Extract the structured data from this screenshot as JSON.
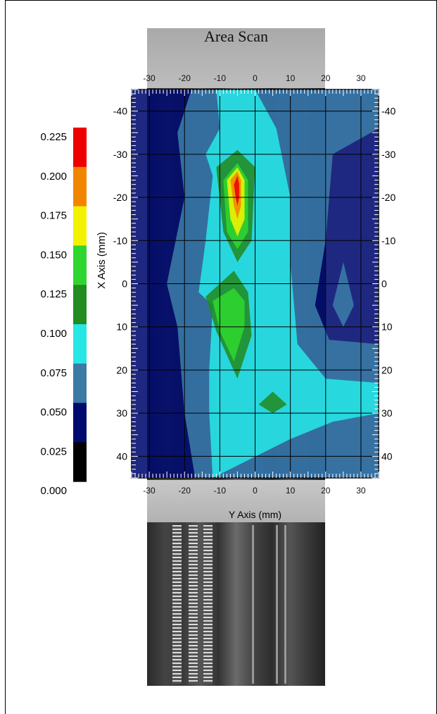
{
  "chart_data": {
    "type": "heatmap",
    "title": "Area Scan",
    "xlabel": "Y Axis (mm)",
    "ylabel": "X Axis (mm)",
    "x_ticks": [
      -30,
      -20,
      -10,
      0,
      10,
      20,
      30
    ],
    "y_ticks": [
      -40,
      -30,
      -20,
      -10,
      0,
      10,
      20,
      30,
      40
    ],
    "xlim": [
      -35,
      35
    ],
    "ylim": [
      -45,
      45
    ],
    "grid": true,
    "colorbar": {
      "labels": [
        "0.225",
        "0.200",
        "0.175",
        "0.150",
        "0.125",
        "0.100",
        "0.075",
        "0.050",
        "0.025",
        "0.000"
      ],
      "levels": [
        0.0,
        0.025,
        0.05,
        0.075,
        0.1,
        0.125,
        0.15,
        0.175,
        0.2,
        0.225
      ],
      "colors": [
        "#000000",
        "#000a6e",
        "#3a7ba6",
        "#26e6e6",
        "#228b22",
        "#2fd62f",
        "#f2f200",
        "#f28500",
        "#ee0000"
      ]
    },
    "contours": [
      {
        "level": 0.05,
        "color": "#3a7ba6",
        "regions": [
          [
            [
              -18,
              -45
            ],
            [
              35,
              -45
            ],
            [
              35,
              -36
            ],
            [
              22,
              -30
            ],
            [
              20,
              -10
            ],
            [
              17,
              5
            ],
            [
              21,
              13
            ],
            [
              35,
              14
            ],
            [
              35,
              45
            ],
            [
              -17,
              45
            ],
            [
              -20,
              30
            ],
            [
              -22,
              10
            ],
            [
              -25,
              0
            ],
            [
              -20,
              -20
            ],
            [
              -22,
              -35
            ]
          ],
          [
            [
              25,
              -5
            ],
            [
              28,
              5
            ],
            [
              25,
              10
            ],
            [
              22,
              5
            ]
          ]
        ]
      },
      {
        "level": 0.075,
        "color": "#26e6e6",
        "regions": [
          [
            [
              -11,
              -45
            ],
            [
              0,
              -45
            ],
            [
              6,
              -36
            ],
            [
              10,
              -20
            ],
            [
              10,
              -5
            ],
            [
              12,
              14
            ],
            [
              20,
              22
            ],
            [
              35,
              23
            ],
            [
              35,
              30
            ],
            [
              22,
              32
            ],
            [
              10,
              36
            ],
            [
              -12,
              45
            ],
            [
              -13,
              30
            ],
            [
              -13,
              20
            ],
            [
              -12,
              5
            ],
            [
              -16,
              2
            ],
            [
              -14,
              -10
            ],
            [
              -12,
              -25
            ],
            [
              -14,
              -30
            ],
            [
              -10,
              -36
            ]
          ]
        ]
      },
      {
        "level": 0.1,
        "color": "#228b22",
        "regions": [
          [
            [
              -5,
              -31
            ],
            [
              0,
              -27
            ],
            [
              -1,
              -10
            ],
            [
              -5,
              -5
            ],
            [
              -9,
              -12
            ],
            [
              -11,
              -27
            ]
          ],
          [
            [
              -6,
              -3
            ],
            [
              -2,
              2
            ],
            [
              -1,
              12
            ],
            [
              -5,
              22
            ],
            [
              -11,
              11
            ],
            [
              -14,
              3
            ]
          ],
          [
            [
              5,
              25
            ],
            [
              9,
              28
            ],
            [
              5,
              30
            ],
            [
              1,
              28
            ]
          ]
        ]
      },
      {
        "level": 0.125,
        "color": "#2fd62f",
        "regions": [
          [
            [
              -5,
              -28
            ],
            [
              -2,
              -24
            ],
            [
              -2,
              -12
            ],
            [
              -5,
              -8
            ],
            [
              -8,
              -12
            ],
            [
              -9,
              -24
            ]
          ],
          [
            [
              -6,
              1
            ],
            [
              -3,
              4
            ],
            [
              -3,
              10
            ],
            [
              -6,
              18
            ],
            [
              -10,
              11
            ],
            [
              -12,
              4
            ]
          ]
        ]
      },
      {
        "level": 0.15,
        "color": "#f2f200",
        "regions": [
          [
            [
              -5,
              -27
            ],
            [
              -3,
              -24
            ],
            [
              -3,
              -15
            ],
            [
              -5,
              -11
            ],
            [
              -7,
              -15
            ],
            [
              -8,
              -24
            ]
          ]
        ]
      },
      {
        "level": 0.175,
        "color": "#f28500",
        "regions": [
          [
            [
              -5,
              -26
            ],
            [
              -4,
              -24
            ],
            [
              -4,
              -18
            ],
            [
              -5,
              -15
            ],
            [
              -6,
              -18
            ],
            [
              -7,
              -24
            ]
          ]
        ]
      },
      {
        "level": 0.2,
        "color": "#ee0000",
        "regions": [
          [
            [
              -5,
              -25
            ],
            [
              -4.5,
              -23
            ],
            [
              -4.5,
              -20
            ],
            [
              -5,
              -18
            ],
            [
              -5.5,
              -20
            ],
            [
              -6,
              -23
            ]
          ]
        ]
      }
    ]
  }
}
